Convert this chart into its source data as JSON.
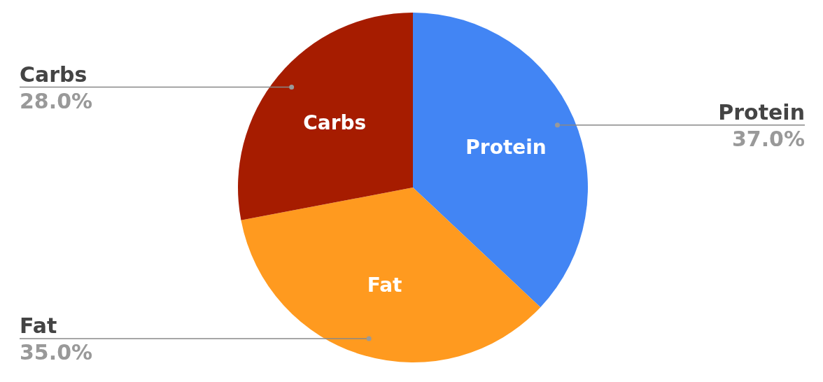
{
  "chart_data": {
    "type": "pie",
    "categories": [
      "Protein",
      "Fat",
      "Carbs"
    ],
    "values": [
      37,
      35,
      28
    ],
    "colors": [
      "#4285f4",
      "#ff9a1f",
      "#a61c00"
    ],
    "value_labels": [
      "37.0%",
      "35.0%",
      "28.0%"
    ]
  }
}
